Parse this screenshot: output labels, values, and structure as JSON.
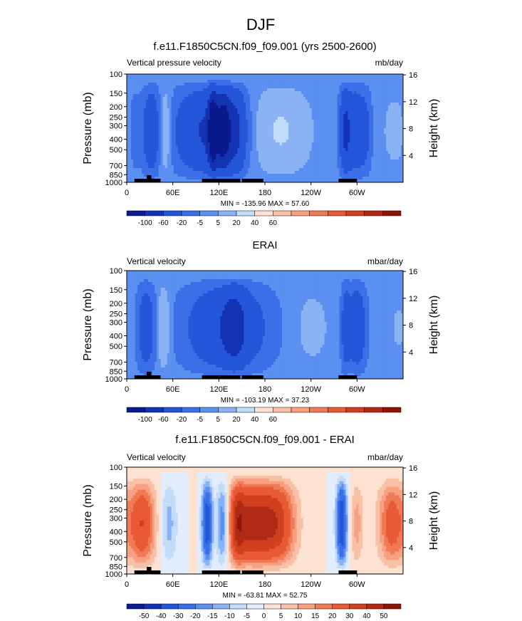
{
  "title": "DJF",
  "panels": [
    {
      "heading": "f.e11.F1850C5CN.f09_f09.001 (yrs 2500-2600)",
      "left_label": "Vertical pressure velocity",
      "right_label": "mb/day",
      "stats": "MIN = -135.96  MAX =  57.60",
      "colorbar_ticks": [
        "-100",
        "-60",
        "-20",
        "-5",
        "5",
        "20",
        "40",
        "60"
      ]
    },
    {
      "heading": "ERAI",
      "left_label": "Vertical velocity",
      "right_label": "mbar/day",
      "stats": "MIN = -103.19  MAX =  37.23",
      "colorbar_ticks": [
        "-100",
        "-60",
        "-20",
        "-5",
        "5",
        "20",
        "40",
        "60"
      ]
    },
    {
      "heading": "f.e11.F1850C5CN.f09_f09.001 - ERAI",
      "left_label": "Vertical velocity",
      "right_label": "mbar/day",
      "stats": "MIN = -63.81  MAX =  52.75",
      "colorbar_ticks": [
        "-50",
        "-40",
        "-30",
        "-20",
        "-15",
        "-10",
        "-5",
        "0",
        "5",
        "10",
        "15",
        "20",
        "30",
        "40",
        "50"
      ]
    }
  ],
  "chart_data": [
    {
      "type": "heatmap",
      "title": "f.e11.F1850C5CN.f09_f09.001 (yrs 2500-2600)",
      "variable": "Vertical pressure velocity",
      "units": "mb/day",
      "ylabel": "Pressure (mb)",
      "ylabel_right": "Height (km)",
      "x_ticks": [
        "0",
        "60E",
        "120E",
        "180",
        "120W",
        "60W"
      ],
      "y_ticks": [
        "100",
        "150",
        "200",
        "250",
        "300",
        "400",
        "500",
        "700",
        "850",
        "1000"
      ],
      "y_right_ticks": [
        "4",
        "8",
        "12",
        "16"
      ],
      "xlim": [
        0,
        360
      ],
      "ylim": [
        1000,
        100
      ],
      "min": -135.96,
      "max": 57.6,
      "features": [
        {
          "lon": 32,
          "amp": -45,
          "width": 8
        },
        {
          "lon": 50,
          "amp": 25,
          "width": 6
        },
        {
          "lon": 105,
          "amp": -65,
          "width": 28
        },
        {
          "lon": 112,
          "amp": -100,
          "width": 4
        },
        {
          "lon": 125,
          "amp": -75,
          "width": 6
        },
        {
          "lon": 140,
          "amp": -55,
          "width": 10
        },
        {
          "lon": 200,
          "amp": 22,
          "width": 25
        },
        {
          "lon": 285,
          "amp": -70,
          "width": 5
        },
        {
          "lon": 298,
          "amp": -45,
          "width": 6
        },
        {
          "lon": 310,
          "amp": -30,
          "width": 6
        },
        {
          "lon": 10,
          "amp": -14,
          "width": 5
        },
        {
          "lon": 350,
          "amp": 8,
          "width": 14
        }
      ]
    },
    {
      "type": "heatmap",
      "title": "ERAI",
      "variable": "Vertical velocity",
      "units": "mbar/day",
      "ylabel": "Pressure (mb)",
      "ylabel_right": "Height (km)",
      "x_ticks": [
        "0",
        "60E",
        "120E",
        "180",
        "120W",
        "60W"
      ],
      "y_ticks": [
        "100",
        "150",
        "200",
        "250",
        "300",
        "400",
        "500",
        "700",
        "850",
        "1000"
      ],
      "y_right_ticks": [
        "4",
        "8",
        "12",
        "16"
      ],
      "xlim": [
        0,
        360
      ],
      "ylim": [
        1000,
        100
      ],
      "min": -103.19,
      "max": 37.23,
      "features": [
        {
          "lon": 25,
          "amp": -40,
          "width": 8
        },
        {
          "lon": 48,
          "amp": 20,
          "width": 6
        },
        {
          "lon": 130,
          "amp": -55,
          "width": 35
        },
        {
          "lon": 140,
          "amp": -40,
          "width": 10
        },
        {
          "lon": 300,
          "amp": -45,
          "width": 8
        },
        {
          "lon": 285,
          "amp": -35,
          "width": 4
        },
        {
          "lon": 240,
          "amp": 8,
          "width": 20
        },
        {
          "lon": 355,
          "amp": 6,
          "width": 12
        }
      ]
    },
    {
      "type": "heatmap",
      "title": "f.e11.F1850C5CN.f09_f09.001 - ERAI",
      "variable": "Vertical velocity",
      "units": "mbar/day",
      "ylabel": "Pressure (mb)",
      "ylabel_right": "Height (km)",
      "x_ticks": [
        "0",
        "60E",
        "120E",
        "180",
        "120W",
        "60W"
      ],
      "y_ticks": [
        "100",
        "150",
        "200",
        "250",
        "300",
        "400",
        "500",
        "700",
        "850",
        "1000"
      ],
      "y_right_ticks": [
        "4",
        "8",
        "12",
        "16"
      ],
      "xlim": [
        0,
        360
      ],
      "ylim": [
        1000,
        100
      ],
      "min": -63.81,
      "max": 52.75,
      "features": [
        {
          "lon": 20,
          "amp": 30,
          "width": 12
        },
        {
          "lon": 55,
          "amp": -12,
          "width": 8
        },
        {
          "lon": 105,
          "amp": -40,
          "width": 5
        },
        {
          "lon": 125,
          "amp": -30,
          "width": 6
        },
        {
          "lon": 165,
          "amp": 45,
          "width": 25
        },
        {
          "lon": 200,
          "amp": 20,
          "width": 15
        },
        {
          "lon": 280,
          "amp": -40,
          "width": 5
        },
        {
          "lon": 300,
          "amp": 12,
          "width": 6
        },
        {
          "lon": 345,
          "amp": 25,
          "width": 12
        },
        {
          "lon": 145,
          "amp": 18,
          "width": 6
        }
      ]
    }
  ],
  "colors": {
    "panel_1_3_scale": [
      "#0a1a8c",
      "#1432b4",
      "#2356d8",
      "#3a6fe8",
      "#5b8ff0",
      "#8ab2f5",
      "#c2dcfa",
      "#fde2d2",
      "#f9c0a8",
      "#f7a082",
      "#f07a55",
      "#e85a35",
      "#d0401f",
      "#b02a15",
      "#8c1409"
    ],
    "diff_scale": [
      "#0a1a8c",
      "#1432b4",
      "#2356d8",
      "#3a6fe8",
      "#5b8ff0",
      "#8ab2f5",
      "#c2dcfa",
      "#e1ecfc",
      "#fde2d2",
      "#f9c0a8",
      "#f7a082",
      "#f07a55",
      "#e85a35",
      "#d0401f",
      "#b02a15",
      "#8c1409"
    ],
    "land": "#000000"
  }
}
